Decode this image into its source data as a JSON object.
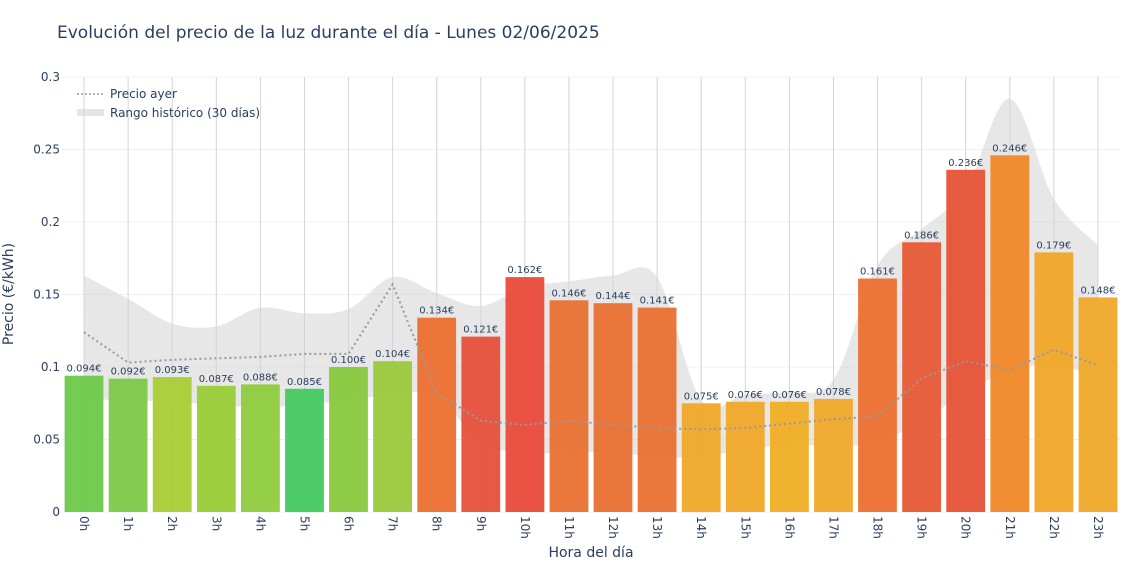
{
  "chart_data": {
    "type": "bar",
    "title": "Evolución del precio de la luz durante el día - Lunes 02/06/2025",
    "xlabel": "Hora del día",
    "ylabel": "Precio (€/kWh)",
    "ylim": [
      0,
      0.3
    ],
    "yticks": [
      0,
      0.05,
      0.1,
      0.15,
      0.2,
      0.25,
      0.3
    ],
    "ytick_labels": [
      "0",
      "0.05",
      "0.1",
      "0.15",
      "0.2",
      "0.25",
      "0.3"
    ],
    "grid": true,
    "legend_position": "top-left",
    "categories": [
      "0h",
      "1h",
      "2h",
      "3h",
      "4h",
      "5h",
      "6h",
      "7h",
      "8h",
      "9h",
      "10h",
      "11h",
      "12h",
      "13h",
      "14h",
      "15h",
      "16h",
      "17h",
      "18h",
      "19h",
      "20h",
      "21h",
      "22h",
      "23h"
    ],
    "values": [
      0.094,
      0.092,
      0.093,
      0.087,
      0.088,
      0.085,
      0.1,
      0.104,
      0.134,
      0.121,
      0.162,
      0.146,
      0.144,
      0.141,
      0.075,
      0.076,
      0.076,
      0.078,
      0.161,
      0.186,
      0.236,
      0.246,
      0.179,
      0.148
    ],
    "value_labels": [
      "0.094€",
      "0.092€",
      "0.093€",
      "0.087€",
      "0.088€",
      "0.085€",
      "0.100€",
      "0.104€",
      "0.134€",
      "0.121€",
      "0.162€",
      "0.146€",
      "0.144€",
      "0.141€",
      "0.075€",
      "0.076€",
      "0.076€",
      "0.078€",
      "0.161€",
      "0.186€",
      "0.236€",
      "0.246€",
      "0.179€",
      "0.148€"
    ],
    "bar_colors": [
      "#6dc94a",
      "#7ec94a",
      "#a9cc36",
      "#99cc36",
      "#8fcc3e",
      "#45c95f",
      "#88c93e",
      "#9ac93a",
      "#ec7030",
      "#e6503a",
      "#ea4a3a",
      "#e97030",
      "#e87030",
      "#e97030",
      "#f0a828",
      "#f0a828",
      "#f0ae24",
      "#f0a828",
      "#ec6f30",
      "#e85a36",
      "#e65236",
      "#f08828",
      "#f0a628",
      "#f0a828"
    ],
    "series": [
      {
        "name": "Precio ayer",
        "style": "dotted line",
        "color": "#999999",
        "values": [
          0.124,
          0.103,
          0.105,
          0.106,
          0.107,
          0.109,
          0.109,
          0.157,
          0.082,
          0.063,
          0.06,
          0.063,
          0.06,
          0.058,
          0.057,
          0.058,
          0.061,
          0.064,
          0.066,
          0.092,
          0.104,
          0.098,
          0.112,
          0.101
        ]
      },
      {
        "name": "Rango histórico (30 días)",
        "style": "band",
        "color": "#d3d3d3",
        "lower": [
          0.078,
          0.077,
          0.076,
          0.074,
          0.072,
          0.074,
          0.077,
          0.081,
          0.08,
          0.048,
          0.041,
          0.041,
          0.041,
          0.038,
          0.038,
          0.043,
          0.046,
          0.046,
          0.048,
          0.063,
          0.082,
          0.098,
          0.101,
          0.094
        ],
        "upper": [
          0.163,
          0.147,
          0.13,
          0.128,
          0.141,
          0.137,
          0.14,
          0.162,
          0.151,
          0.142,
          0.155,
          0.159,
          0.163,
          0.162,
          0.077,
          0.081,
          0.083,
          0.091,
          0.17,
          0.195,
          0.223,
          0.285,
          0.216,
          0.184
        ]
      }
    ]
  }
}
